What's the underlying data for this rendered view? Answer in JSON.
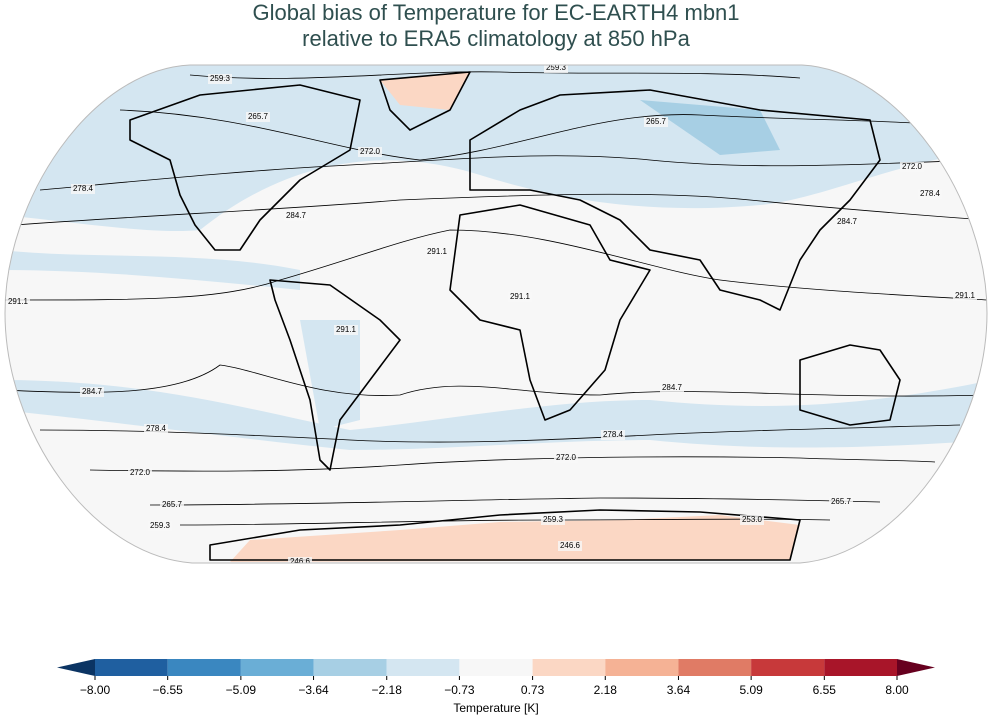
{
  "title": [
    "Global bias of Temperature for EC-EARTH4 mbn1",
    "relative to ERA5 climatology at 850 hPa"
  ],
  "contour_labels": [
    "259.3",
    "259.3",
    "265.7",
    "265.7",
    "272.0",
    "272.0",
    "278.4",
    "278.4",
    "284.7",
    "284.7",
    "291.1",
    "291.1",
    "291.1",
    "291.1",
    "291.1",
    "284.7",
    "284.7",
    "278.4",
    "278.4",
    "272.0",
    "272.0",
    "265.7",
    "265.7",
    "259.3",
    "259.3",
    "253.0",
    "246.6",
    "246.6"
  ],
  "colorbar": {
    "label": "Temperature [K]",
    "colors": [
      "#1f5fa0",
      "#3a87c0",
      "#6aaed6",
      "#a7cfe4",
      "#d4e6f1",
      "#f7f7f7",
      "#fbd7c4",
      "#f5b295",
      "#e07b65",
      "#c7393a",
      "#a81529"
    ],
    "under_color": "#0b3463",
    "over_color": "#67001f",
    "ticks": [
      {
        "value": -8,
        "label": "−8.00"
      },
      {
        "value": -6.55,
        "label": "−6.55"
      },
      {
        "value": -5.09,
        "label": "−5.09"
      },
      {
        "value": -3.64,
        "label": "−3.64"
      },
      {
        "value": -2.18,
        "label": "−2.18"
      },
      {
        "value": -0.73,
        "label": "−0.73"
      },
      {
        "value": 0.73,
        "label": "0.73"
      },
      {
        "value": 2.18,
        "label": "2.18"
      },
      {
        "value": 3.64,
        "label": "3.64"
      },
      {
        "value": 5.09,
        "label": "5.09"
      },
      {
        "value": 6.55,
        "label": "6.55"
      },
      {
        "value": 8,
        "label": "8.00"
      }
    ]
  }
}
